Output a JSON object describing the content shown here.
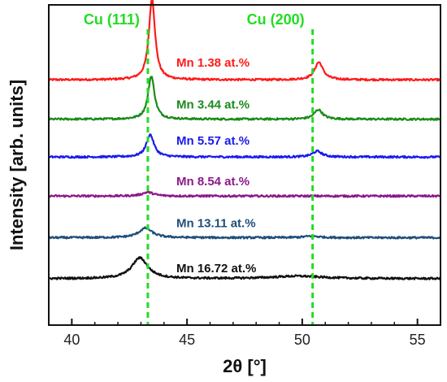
{
  "chart_data": {
    "type": "line",
    "xlabel": "2θ [°]",
    "ylabel": "Intensity [arb. units]",
    "xlim": [
      39,
      56
    ],
    "ylim": [
      0,
      1
    ],
    "xticks": [
      "40",
      "45",
      "50",
      "55"
    ],
    "grid": false,
    "reference_lines": [
      {
        "label": "Cu (111)",
        "x": 43.3,
        "color": "#22dd22"
      },
      {
        "label": "Cu (200)",
        "x": 50.45,
        "color": "#22dd22"
      }
    ],
    "series": [
      {
        "name": "Mn 1.38 at.%",
        "color": "#ff1a1a",
        "baseline": 0.766,
        "peaks": [
          {
            "x": 43.48,
            "height": 0.255,
            "width": 0.16
          },
          {
            "x": 50.72,
            "height": 0.055,
            "width": 0.22
          }
        ]
      },
      {
        "name": "Mn 3.44 at.%",
        "color": "#1a8a1a",
        "baseline": 0.643,
        "peaks": [
          {
            "x": 43.45,
            "height": 0.135,
            "width": 0.17
          },
          {
            "x": 50.7,
            "height": 0.03,
            "width": 0.22
          }
        ]
      },
      {
        "name": "Mn 5.57 at.%",
        "color": "#1a1aee",
        "baseline": 0.525,
        "peaks": [
          {
            "x": 43.4,
            "height": 0.07,
            "width": 0.2
          },
          {
            "x": 50.65,
            "height": 0.018,
            "width": 0.25
          }
        ]
      },
      {
        "name": "Mn 8.54 at.%",
        "color": "#8a1a8a",
        "baseline": 0.403,
        "peaks": [
          {
            "x": 43.3,
            "height": 0.012,
            "width": 0.3
          }
        ]
      },
      {
        "name": "Mn 13.11 at.%",
        "color": "#1f4e79",
        "baseline": 0.273,
        "peaks": [
          {
            "x": 43.2,
            "height": 0.03,
            "width": 0.35
          },
          {
            "x": 50.4,
            "height": 0.005,
            "width": 0.4
          }
        ]
      },
      {
        "name": "Mn 16.72 at.%",
        "color": "#111111",
        "baseline": 0.145,
        "peaks": [
          {
            "x": 42.95,
            "height": 0.065,
            "width": 0.42
          },
          {
            "x": 49.8,
            "height": 0.008,
            "width": 1.3
          }
        ]
      }
    ]
  }
}
